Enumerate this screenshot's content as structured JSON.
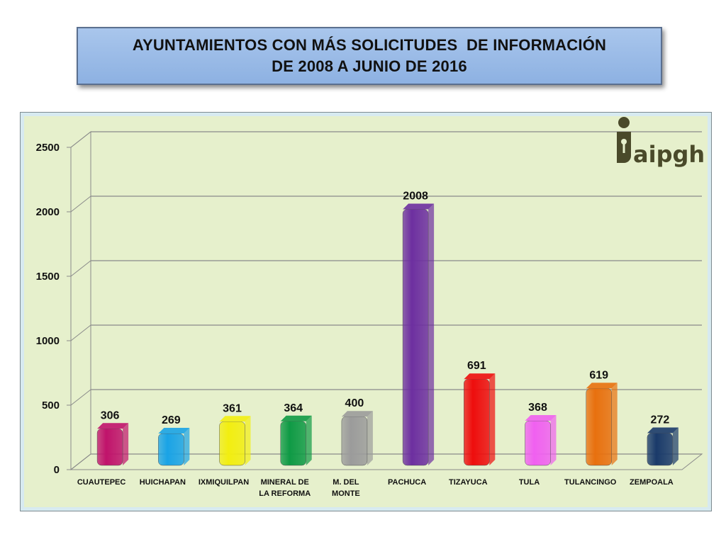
{
  "title": {
    "line1": "AYUNTAMIENTOS CON MÁS SOLICITUDES  DE INFORMACIÓN",
    "line2": "DE 2008 A JUNIO DE 2016"
  },
  "logo": {
    "text": "aipgh",
    "icon": "info-person-icon",
    "color": "#4a4a2a"
  },
  "chart_data": {
    "type": "bar",
    "title": "AYUNTAMIENTOS CON MÁS SOLICITUDES  DE INFORMACIÓN DE 2008 A JUNIO DE 2016",
    "xlabel": "",
    "ylabel": "",
    "ylim": [
      0,
      2500
    ],
    "yticks": [
      0,
      500,
      1000,
      1500,
      2000,
      2500
    ],
    "grid": true,
    "legend": "none",
    "categories": [
      [
        "CUAUTEPEC"
      ],
      [
        "HUICHAPAN"
      ],
      [
        "IXMIQUILPAN"
      ],
      [
        "MINERAL DE",
        "LA REFORMA"
      ],
      [
        "M. DEL",
        "MONTE"
      ],
      [
        "PACHUCA"
      ],
      [
        "TIZAYUCA"
      ],
      [
        "TULA"
      ],
      [
        "TULANCINGO"
      ],
      [
        "ZEMPOALA"
      ]
    ],
    "values": [
      306,
      269,
      361,
      364,
      400,
      2008,
      691,
      368,
      619,
      272
    ],
    "colors": [
      "#c0136b",
      "#1aa3e6",
      "#f2ee10",
      "#0f9a45",
      "#9b9b9b",
      "#6d2fa0",
      "#ee0d0d",
      "#f060f0",
      "#e8700e",
      "#1a3a6a"
    ]
  }
}
